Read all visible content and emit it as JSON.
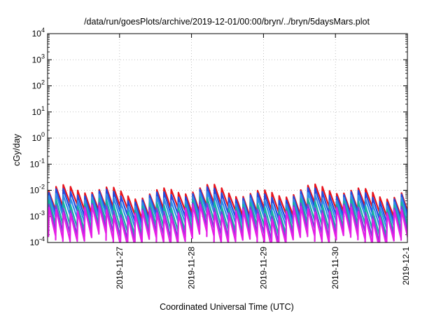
{
  "chart_data": {
    "type": "line",
    "title": "/data/run/goesPlots/archive/2019-12-01/00:00/bryn/../bryn/5daysMars.plot",
    "xlabel": "Coordinated Universal Time (UTC)",
    "ylabel": "cGy/day",
    "x_range": [
      "2019-11-26",
      "2019-12-01"
    ],
    "x_ticks": [
      "2019-11-27",
      "2019-11-28",
      "2019-11-29",
      "2019-11-30",
      "2019-12-1"
    ],
    "yscale": "log",
    "ylim": [
      0.0001,
      10000
    ],
    "y_ticks": [
      {
        "base": "10",
        "exp": "-4"
      },
      {
        "base": "10",
        "exp": "-3"
      },
      {
        "base": "10",
        "exp": "-2"
      },
      {
        "base": "10",
        "exp": "-1"
      },
      {
        "base": "10",
        "exp": "0"
      },
      {
        "base": "10",
        "exp": "1"
      },
      {
        "base": "10",
        "exp": "2"
      },
      {
        "base": "10",
        "exp": "3"
      },
      {
        "base": "10",
        "exp": "4"
      }
    ],
    "grid": true,
    "pattern": "sawtooth: sharp rise each ~2.4 h then decay over the cycle",
    "cycles_per_day": 10,
    "series": [
      {
        "color": "#e8121b",
        "peak": 0.009,
        "trough": 0.0017
      },
      {
        "color": "#1f4be0",
        "peak": 0.0068,
        "trough": 0.0011
      },
      {
        "color": "#2f8fe8",
        "peak": 0.0045,
        "trough": 0.0007
      },
      {
        "color": "#15b3a0",
        "peak": 0.0028,
        "trough": 0.00035
      },
      {
        "color": "#7a3ddb",
        "peak": 0.0019,
        "trough": 0.0002
      },
      {
        "color": "#e61ee6",
        "peak": 0.0015,
        "trough": 0.00012
      }
    ]
  }
}
